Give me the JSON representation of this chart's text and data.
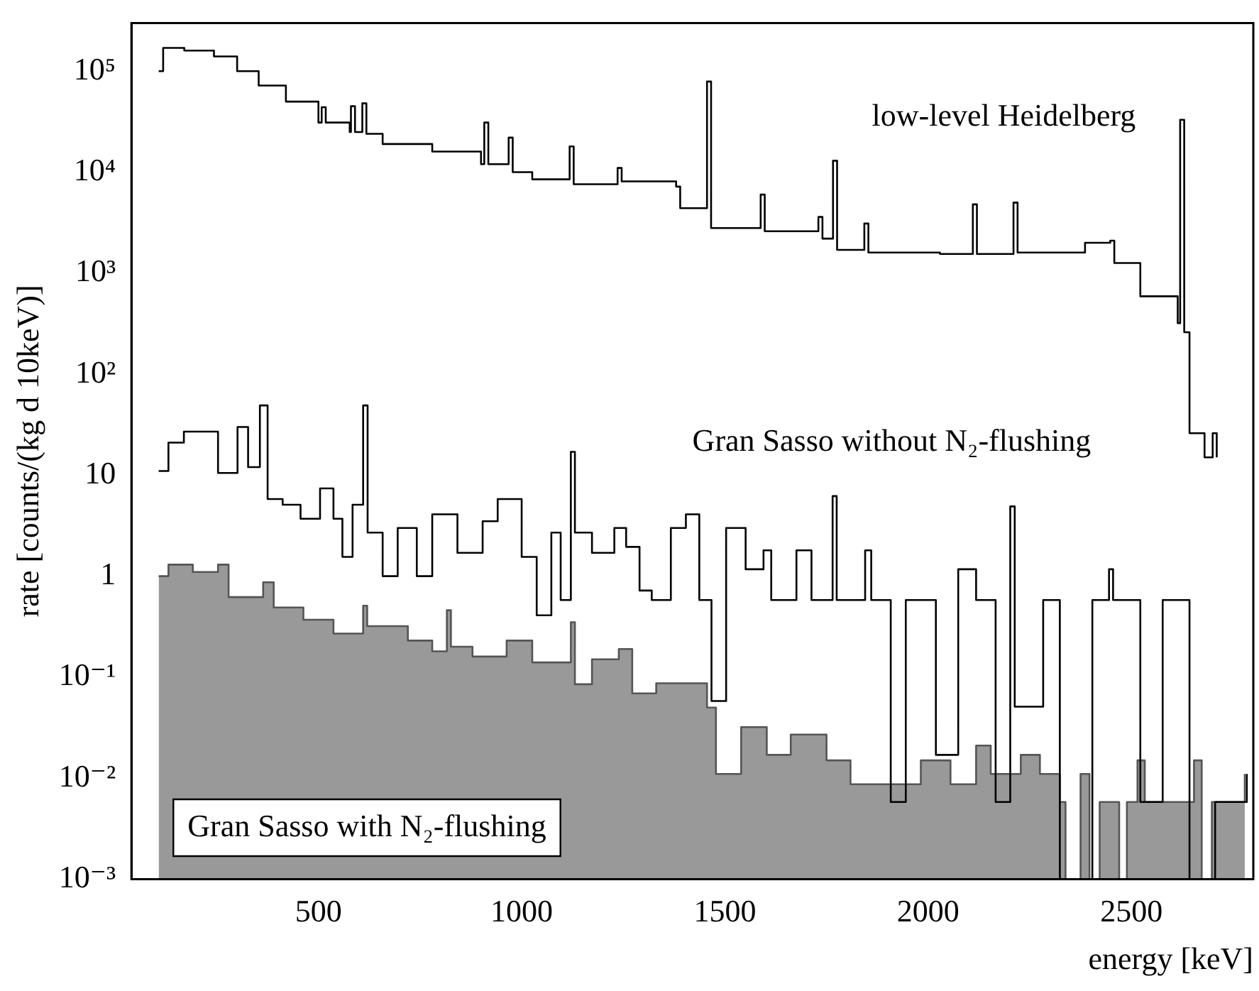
{
  "chart_data": {
    "type": "step",
    "xlabel": "energy [keV]",
    "ylabel": "rate [counts/(kg d 10keV)]",
    "log": "y",
    "xlim": [
      40,
      2800
    ],
    "xticks": [
      500,
      1000,
      1500,
      2000,
      2500
    ],
    "ylim": [
      0.001,
      300000
    ],
    "yticks": [
      {
        "value": 0.001,
        "label": "10⁻³"
      },
      {
        "value": 0.01,
        "label": "10⁻²"
      },
      {
        "value": 0.1,
        "label": "10⁻¹"
      },
      1,
      10,
      {
        "value": 100,
        "label": "10²"
      },
      {
        "value": 1000,
        "label": "10³"
      },
      {
        "value": 10000,
        "label": "10⁴"
      },
      {
        "value": 100000,
        "label": "10⁵"
      }
    ],
    "series": [
      {
        "name": "low-level Heidelberg",
        "type": "step",
        "color": "#000000",
        "x": [
          107,
          118,
          170,
          243,
          300,
          353,
          420,
          500,
          508,
          518,
          577,
          580,
          590,
          608,
          618,
          658,
          780,
          900,
          908,
          918,
          968,
          978,
          1026,
          1118,
          1128,
          1198,
          1236,
          1246,
          1380,
          1390,
          1456,
          1466,
          1588,
          1598,
          1730,
          1740,
          1766,
          1776,
          1843,
          1853,
          2029,
          2110,
          2120,
          2210,
          2220,
          2386,
          2448,
          2458,
          2522,
          2614,
          2620,
          2630,
          2643,
          2680,
          2700,
          2710
        ],
        "values": [
          100000,
          170000,
          160000,
          140000,
          100000,
          72000,
          50000,
          31000,
          44000,
          31000,
          25000,
          45000,
          25000,
          48000,
          24000,
          19000,
          16000,
          12000,
          31000,
          12000,
          22000,
          10000,
          8500,
          18000,
          7600,
          7600,
          11000,
          8100,
          7200,
          4400,
          79000,
          2800,
          6000,
          2600,
          3600,
          2200,
          13000,
          1700,
          3100,
          1600,
          1550,
          4800,
          1550,
          5000,
          1600,
          2000,
          2100,
          1260,
          590,
          320,
          33000,
          260,
          26,
          15,
          26,
          15
        ]
      },
      {
        "name": "Gran Sasso without N₂-flushing",
        "type": "step",
        "color": "#000000",
        "x": [
          107,
          131,
          169,
          253,
          301,
          327,
          356,
          375,
          412,
          456,
          504,
          537,
          559,
          584,
          610,
          621,
          658,
          695,
          742,
          780,
          842,
          904,
          941,
          1000,
          1037,
          1073,
          1096,
          1121,
          1131,
          1173,
          1228,
          1257,
          1290,
          1320,
          1367,
          1404,
          1437,
          1467,
          1503,
          1551,
          1595,
          1614,
          1676,
          1713,
          1765,
          1775,
          1845,
          1860,
          1908,
          1945,
          2019,
          2074,
          2118,
          2166,
          2202,
          2213,
          2283,
          2324,
          2404,
          2445,
          2455,
          2522,
          2577,
          2643,
          2706,
          2784
        ],
        "values": [
          11,
          21,
          27,
          10.5,
          30,
          12,
          49,
          5.8,
          5.1,
          3.7,
          7.4,
          3.7,
          1.55,
          5.1,
          49,
          2.7,
          1,
          3,
          1,
          4.1,
          1.7,
          3.5,
          5.8,
          1.55,
          0.41,
          2.7,
          0.58,
          17,
          2.7,
          1.7,
          3,
          1.95,
          0.72,
          0.58,
          3,
          4.1,
          0.58,
          0.058,
          3,
          1.17,
          1.8,
          0.58,
          1.8,
          0.58,
          6.2,
          0.58,
          1.8,
          0.58,
          0.0058,
          0.58,
          0.017,
          1.17,
          0.58,
          0.0058,
          4.9,
          0.051,
          0.58,
          0.001,
          0.58,
          1.17,
          0.58,
          0.0058,
          0.58,
          0.001,
          0.0058,
          0.011
        ]
      },
      {
        "name": "Gran Sasso with N₂-flushing",
        "type": "area",
        "color": "#555555",
        "x": [
          107,
          131,
          191,
          253,
          279,
          364,
          390,
          463,
          537,
          610,
          620,
          720,
          780,
          816,
          826,
          879,
          963,
          1026,
          1121,
          1131,
          1173,
          1239,
          1272,
          1331,
          1456,
          1478,
          1540,
          1603,
          1662,
          1750,
          1809,
          1982,
          2055,
          2118,
          2154,
          2228,
          2275,
          2324,
          2338,
          2375,
          2397,
          2422,
          2470,
          2489,
          2515,
          2533,
          2654,
          2673,
          2698,
          2779
        ],
        "values": [
          1,
          1.3,
          1.1,
          1.3,
          0.62,
          0.87,
          0.49,
          0.37,
          0.27,
          0.51,
          0.32,
          0.23,
          0.18,
          0.46,
          0.2,
          0.16,
          0.23,
          0.14,
          0.35,
          0.085,
          0.15,
          0.19,
          0.069,
          0.087,
          0.05,
          0.011,
          0.032,
          0.017,
          0.027,
          0.015,
          0.0087,
          0.015,
          0.0087,
          0.021,
          0.011,
          0.017,
          0.011,
          0.0058,
          0.001,
          0.011,
          0.001,
          0.0058,
          0.001,
          0.0058,
          0.015,
          0.0058,
          0.015,
          0.001,
          0.0058,
          0.011
        ]
      }
    ]
  }
}
